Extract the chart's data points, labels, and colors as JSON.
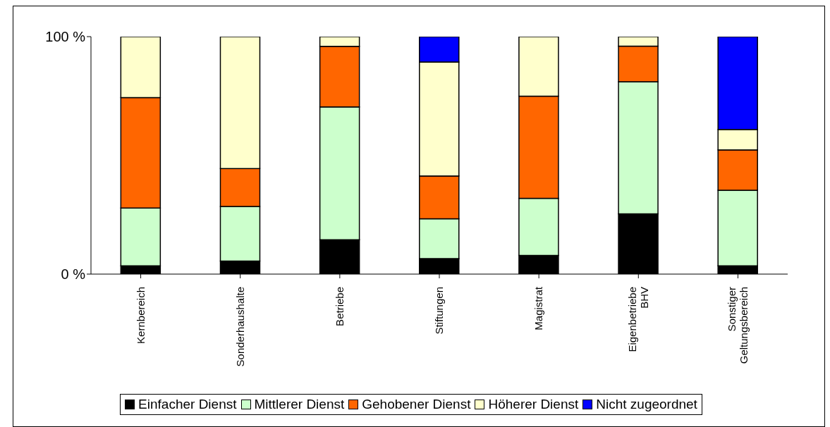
{
  "chart_data": {
    "type": "bar",
    "stacked": true,
    "categories": [
      "Kernbereich",
      "Sonderhaushalte",
      "Betriebe",
      "Stiftungen",
      "Magistrat",
      "Eigenbetriebe BHV",
      "Sonstiger Geltungsbereich"
    ],
    "series": [
      {
        "name": "Einfacher Dienst",
        "color": "#000000",
        "values": [
          3.5,
          5.5,
          14.5,
          6.5,
          7.9,
          25.4,
          3.5
        ]
      },
      {
        "name": "Mittlerer Dienst",
        "color": "#ccffcc",
        "values": [
          24.3,
          23,
          55.9,
          16.8,
          24,
          55.6,
          31.8
        ]
      },
      {
        "name": "Gehobener Dienst",
        "color": "#ff6600",
        "values": [
          46.5,
          15.9,
          25.5,
          18,
          43,
          15,
          17
        ]
      },
      {
        "name": "Höherer Dienst",
        "color": "#ffffcc",
        "values": [
          25.7,
          55.6,
          4.1,
          48,
          25.1,
          4,
          8.6
        ]
      },
      {
        "name": "Nicht zugeordnet",
        "color": "#0000ff",
        "values": [
          0,
          0,
          0,
          10.7,
          0,
          0,
          39.1
        ]
      }
    ],
    "ylim": [
      0,
      100
    ],
    "yticks": [
      {
        "value": 0,
        "label": "0 %"
      },
      {
        "value": 100,
        "label": "100 %"
      }
    ],
    "legend": "bottom"
  }
}
